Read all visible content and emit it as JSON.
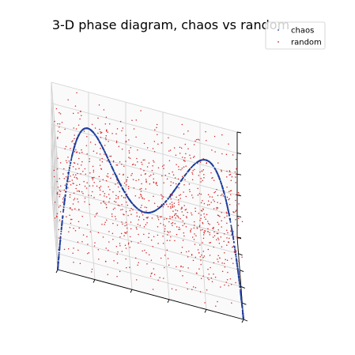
{
  "chart_data": {
    "type": "scatter",
    "projection": "3d",
    "title": "3-D phase diagram, chaos vs random",
    "xlabel": "",
    "ylabel": "",
    "zlabel": "",
    "tick_labels_visible": false,
    "grid": true,
    "legend": {
      "position": "top-right",
      "entries": [
        "chaos",
        "random"
      ]
    },
    "series": [
      {
        "name": "chaos",
        "color": "#1f3f9c",
        "marker": "point",
        "description_source": "logistic-map phase trajectory (x_t, x_t+1, x_t+2), r = 4",
        "x0": 0.1,
        "r": 4,
        "n_points": 1000
      },
      {
        "name": "random",
        "color": "#d62728",
        "marker": "point",
        "n_points": 1000,
        "range": [
          0,
          1
        ]
      }
    ],
    "xlim": [
      0,
      1
    ],
    "ylim": [
      0,
      1
    ],
    "zlim": [
      0,
      1
    ]
  }
}
